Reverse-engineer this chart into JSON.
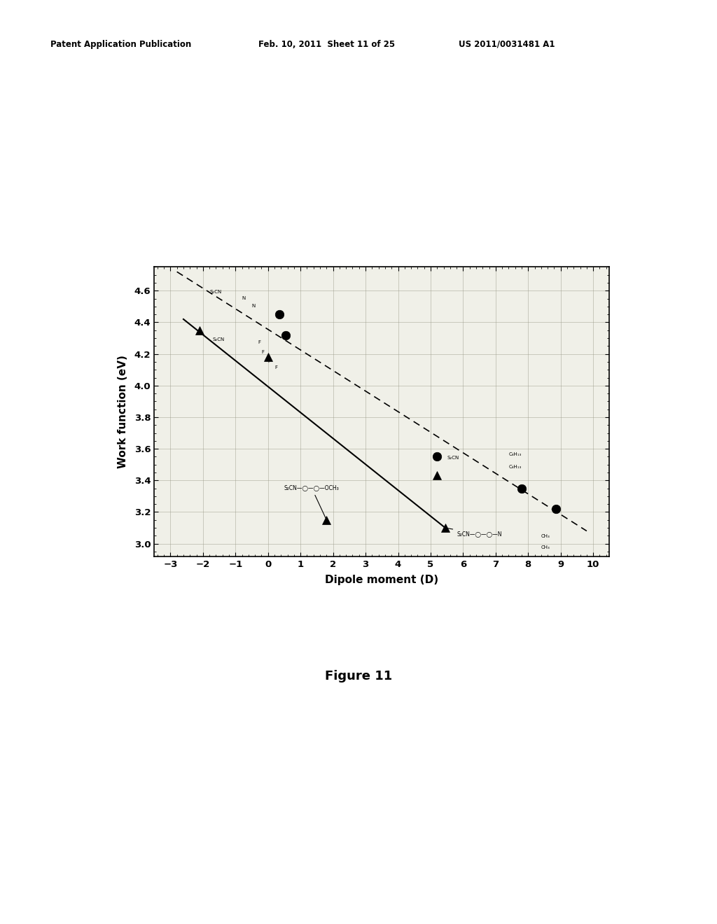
{
  "triangle_points": [
    [
      -2.1,
      4.35
    ],
    [
      0.0,
      4.18
    ],
    [
      1.8,
      3.15
    ],
    [
      5.2,
      3.43
    ],
    [
      5.45,
      3.1
    ]
  ],
  "circle_points": [
    [
      0.35,
      4.45
    ],
    [
      0.55,
      4.32
    ],
    [
      5.2,
      3.55
    ],
    [
      7.8,
      3.35
    ],
    [
      8.85,
      3.22
    ]
  ],
  "solid_line_x": [
    -2.6,
    5.45
  ],
  "solid_line_y": [
    4.42,
    3.1
  ],
  "dashed_line_x": [
    -2.8,
    9.8
  ],
  "dashed_line_y": [
    4.72,
    3.08
  ],
  "xlim": [
    -3.5,
    10.5
  ],
  "ylim": [
    2.92,
    4.75
  ],
  "xticks": [
    -3,
    -2,
    -1,
    0,
    1,
    2,
    3,
    4,
    5,
    6,
    7,
    8,
    9,
    10
  ],
  "yticks": [
    3.0,
    3.2,
    3.4,
    3.6,
    3.8,
    4.0,
    4.2,
    4.4,
    4.6
  ],
  "xlabel": "Dipole moment (D)",
  "ylabel": "Work function (eV)",
  "figure_caption": "Figure 11",
  "header_left": "Patent Application Publication",
  "header_mid": "Feb. 10, 2011  Sheet 11 of 25",
  "header_right": "US 2011/0031481 A1",
  "page_bg": "#ffffff",
  "plot_bg": "#f0f0e8",
  "grid_color": "#999988",
  "marker_color": "black"
}
